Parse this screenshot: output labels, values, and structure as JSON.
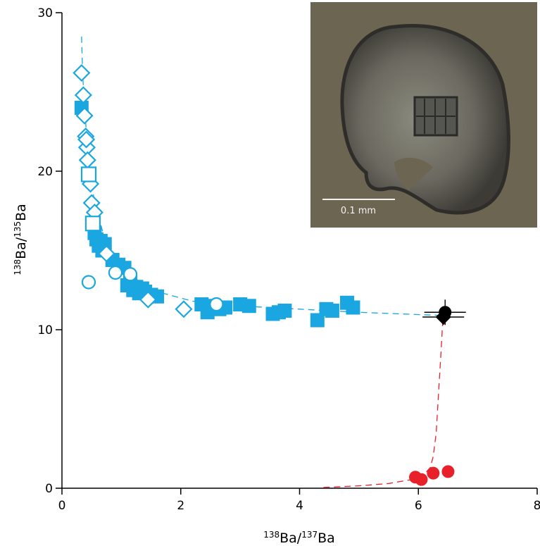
{
  "chart_data": {
    "type": "scatter",
    "title": "",
    "xlabel": {
      "sup1": "138",
      "mid": "Ba/",
      "sup2": "137",
      "end": "Ba"
    },
    "ylabel": {
      "sup1": "138",
      "mid": "Ba/",
      "sup2": "135",
      "end": "Ba"
    },
    "xlim": [
      0,
      8
    ],
    "ylim": [
      0,
      30
    ],
    "xticks": [
      "0",
      "2",
      "4",
      "6",
      "8"
    ],
    "yticks": [
      "0",
      "10",
      "20",
      "30"
    ],
    "colors": {
      "blue": "#1aa6e0",
      "red": "#e8202a",
      "black": "#000000"
    },
    "series": [
      {
        "marker": "square-filled",
        "color": "#1aa6e0",
        "points": [
          [
            0.33,
            24.0
          ],
          [
            0.55,
            16.1
          ],
          [
            0.58,
            15.7
          ],
          [
            0.62,
            15.3
          ],
          [
            0.65,
            15.6
          ],
          [
            0.68,
            15.0
          ],
          [
            0.72,
            15.4
          ],
          [
            0.85,
            14.4
          ],
          [
            0.95,
            14.1
          ],
          [
            1.05,
            13.9
          ],
          [
            1.1,
            12.8
          ],
          [
            1.15,
            13.0
          ],
          [
            1.2,
            12.5
          ],
          [
            1.25,
            12.7
          ],
          [
            1.3,
            12.3
          ],
          [
            1.35,
            12.6
          ],
          [
            1.4,
            12.4
          ],
          [
            1.5,
            12.2
          ],
          [
            1.6,
            12.1
          ],
          [
            2.35,
            11.6
          ],
          [
            2.45,
            11.1
          ],
          [
            2.55,
            11.5
          ],
          [
            2.65,
            11.3
          ],
          [
            2.75,
            11.4
          ],
          [
            3.0,
            11.6
          ],
          [
            3.15,
            11.5
          ],
          [
            3.55,
            11.0
          ],
          [
            3.65,
            11.1
          ],
          [
            3.75,
            11.2
          ],
          [
            4.3,
            10.6
          ],
          [
            4.45,
            11.3
          ],
          [
            4.55,
            11.2
          ],
          [
            4.8,
            11.7
          ],
          [
            4.9,
            11.4
          ]
        ]
      },
      {
        "marker": "diamond-open",
        "color": "#1aa6e0",
        "points": [
          [
            0.33,
            26.2
          ],
          [
            0.36,
            24.8
          ],
          [
            0.38,
            23.5
          ],
          [
            0.4,
            22.2
          ],
          [
            0.42,
            21.5
          ],
          [
            0.41,
            22.0
          ],
          [
            0.43,
            20.7
          ],
          [
            0.48,
            19.2
          ],
          [
            0.5,
            18.0
          ],
          [
            0.55,
            17.4
          ],
          [
            0.75,
            14.8
          ],
          [
            1.45,
            11.9
          ],
          [
            2.05,
            11.3
          ]
        ]
      },
      {
        "marker": "square-open",
        "color": "#1aa6e0",
        "points": [
          [
            0.45,
            19.8
          ],
          [
            0.52,
            16.7
          ]
        ]
      },
      {
        "marker": "circle-open",
        "color": "#1aa6e0",
        "points": [
          [
            0.45,
            13.0
          ],
          [
            0.9,
            13.6
          ],
          [
            1.15,
            13.5
          ],
          [
            2.6,
            11.6
          ]
        ]
      },
      {
        "marker": "circle-filled",
        "color": "#e8202a",
        "points": [
          [
            5.95,
            0.7
          ],
          [
            6.05,
            0.55
          ],
          [
            6.25,
            0.95
          ],
          [
            6.5,
            1.05
          ]
        ]
      },
      {
        "marker": "diamond-filled",
        "color": "#000000",
        "points": [
          [
            6.42,
            10.8
          ]
        ]
      },
      {
        "marker": "circle-filled",
        "color": "#000000",
        "points": [
          [
            6.45,
            11.1
          ]
        ]
      }
    ],
    "error_bars": [
      {
        "x": 6.42,
        "y": 10.8,
        "xerr": 0.35,
        "yerr": 0.5
      },
      {
        "x": 6.45,
        "y": 11.1,
        "xerr": 0.35,
        "yerr": 0.8
      }
    ],
    "curves": [
      {
        "name": "blue-mixing-curve",
        "color": "#1aa6e0",
        "points": [
          [
            0.33,
            28.5
          ],
          [
            0.35,
            26
          ],
          [
            0.4,
            23
          ],
          [
            0.45,
            20.5
          ],
          [
            0.55,
            18
          ],
          [
            0.7,
            16
          ],
          [
            0.9,
            14.5
          ],
          [
            1.2,
            13.3
          ],
          [
            1.6,
            12.4
          ],
          [
            2.2,
            11.8
          ],
          [
            3.0,
            11.5
          ],
          [
            4.0,
            11.3
          ],
          [
            5.0,
            11.1
          ],
          [
            6.4,
            10.9
          ]
        ]
      },
      {
        "name": "red-mixing-curve",
        "color": "#e8202a",
        "points": [
          [
            4.4,
            0.05
          ],
          [
            5.0,
            0.15
          ],
          [
            5.5,
            0.3
          ],
          [
            5.9,
            0.55
          ],
          [
            6.1,
            0.9
          ],
          [
            6.2,
            1.3
          ],
          [
            6.25,
            2.0
          ],
          [
            6.3,
            3.5
          ],
          [
            6.34,
            6.0
          ],
          [
            6.38,
            8.5
          ],
          [
            6.41,
            10.5
          ]
        ]
      }
    ],
    "inset_scale_label": "0.1 mm"
  }
}
